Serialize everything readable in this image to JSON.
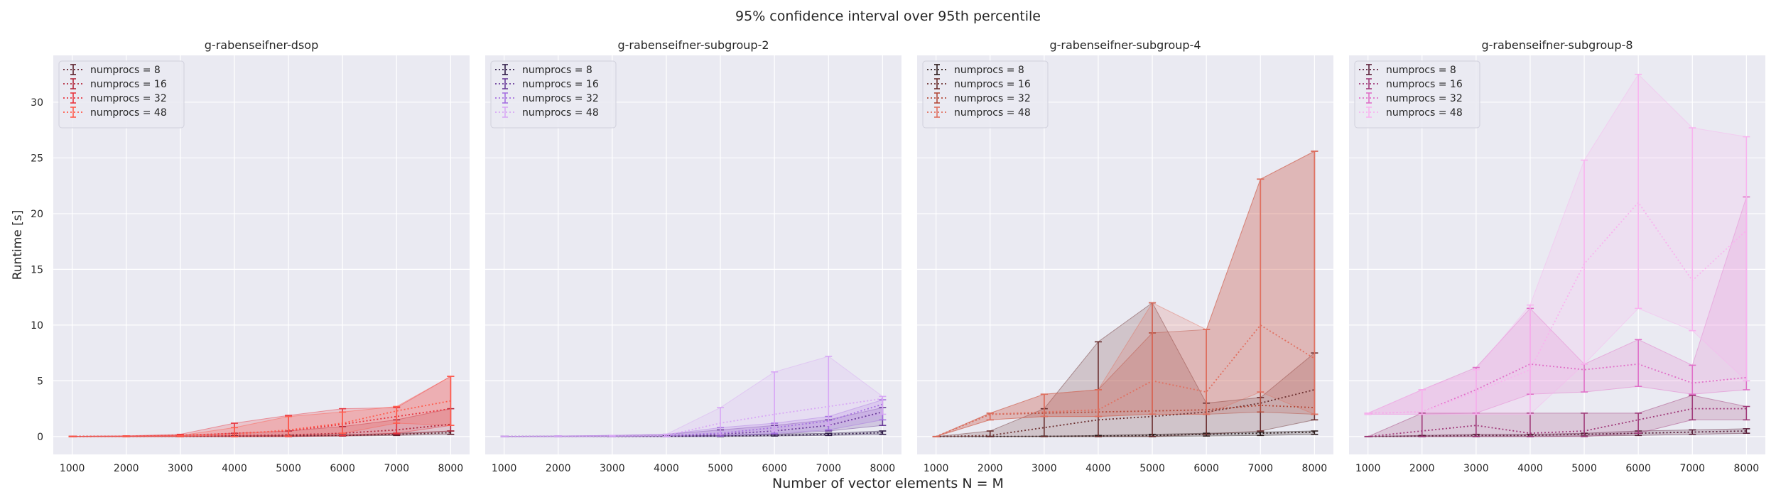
{
  "figure": {
    "suptitle": "95% confidence interval over 95th percentile",
    "xlabel": "Number of vector elements N = M",
    "ylabel": "Runtime [s]"
  },
  "chart_data": [
    {
      "type": "line",
      "title": "g-rabenseifner-dsop",
      "x": [
        1000,
        2000,
        3000,
        4000,
        5000,
        6000,
        7000,
        8000
      ],
      "xticks": [
        1000,
        2000,
        3000,
        4000,
        5000,
        6000,
        7000,
        8000
      ],
      "yticks": [
        0,
        5,
        10,
        15,
        20,
        25,
        30
      ],
      "xlim": [
        650,
        8350
      ],
      "ylim": [
        -1.6,
        34.2
      ],
      "grid": true,
      "legend_loc": "upper left",
      "series": [
        {
          "name": "numprocs = 8",
          "color": "#5c1f2b",
          "y": [
            0.005,
            0.01,
            0.02,
            0.03,
            0.06,
            0.1,
            0.2,
            0.35
          ],
          "lo": [
            0,
            0,
            0,
            0,
            0.02,
            0.05,
            0.1,
            0.2
          ],
          "hi": [
            0.01,
            0.02,
            0.04,
            0.06,
            0.1,
            0.15,
            0.3,
            0.5
          ]
        },
        {
          "name": "numprocs = 16",
          "color": "#b2273b",
          "y": [
            0.01,
            0.02,
            0.05,
            0.08,
            0.15,
            0.3,
            0.6,
            1.1
          ],
          "lo": [
            0,
            0,
            0,
            0,
            0,
            0.05,
            0.2,
            0.5
          ],
          "hi": [
            0.02,
            0.05,
            0.1,
            0.3,
            0.5,
            0.9,
            1.5,
            2.5
          ]
        },
        {
          "name": "numprocs = 32",
          "color": "#e8343e",
          "y": [
            0.01,
            0.03,
            0.1,
            0.3,
            0.5,
            1.1,
            1.8,
            2.5
          ],
          "lo": [
            0,
            0,
            0,
            0,
            0,
            0.1,
            0.3,
            1.0
          ],
          "hi": [
            0.02,
            0.06,
            0.2,
            1.2,
            1.9,
            2.5,
            2.6,
            5.4
          ]
        },
        {
          "name": "numprocs = 48",
          "color": "#ff5c4d",
          "y": [
            0.01,
            0.02,
            0.05,
            0.2,
            0.6,
            1.2,
            2.3,
            3.2
          ],
          "lo": [
            0,
            0,
            0,
            0,
            0.05,
            0.3,
            1.2,
            1.0
          ],
          "hi": [
            0.02,
            0.05,
            0.1,
            0.8,
            1.8,
            2.2,
            2.7,
            5.4
          ]
        }
      ]
    },
    {
      "type": "line",
      "title": "g-rabenseifner-subgroup-2",
      "x": [
        1000,
        2000,
        3000,
        4000,
        5000,
        6000,
        7000,
        8000
      ],
      "xticks": [
        1000,
        2000,
        3000,
        4000,
        5000,
        6000,
        7000,
        8000
      ],
      "yticks": [
        0,
        5,
        10,
        15,
        20,
        25,
        30
      ],
      "xlim": [
        650,
        8350
      ],
      "ylim": [
        -1.6,
        34.2
      ],
      "grid": true,
      "legend_loc": "upper left",
      "series": [
        {
          "name": "numprocs = 8",
          "color": "#2e1a47",
          "y": [
            0.005,
            0.01,
            0.02,
            0.03,
            0.05,
            0.1,
            0.2,
            0.35
          ],
          "lo": [
            0,
            0,
            0,
            0,
            0,
            0.05,
            0.1,
            0.2
          ],
          "hi": [
            0.01,
            0.02,
            0.04,
            0.06,
            0.1,
            0.2,
            0.3,
            0.5
          ]
        },
        {
          "name": "numprocs = 16",
          "color": "#6a3d9a",
          "y": [
            0.01,
            0.02,
            0.05,
            0.1,
            0.2,
            0.5,
            1.0,
            2.2
          ],
          "lo": [
            0,
            0,
            0,
            0,
            0.05,
            0.2,
            0.5,
            1.0
          ],
          "hi": [
            0.02,
            0.05,
            0.1,
            0.2,
            0.6,
            1.0,
            1.5,
            2.6
          ]
        },
        {
          "name": "numprocs = 32",
          "color": "#a570e0",
          "y": [
            0.01,
            0.02,
            0.05,
            0.1,
            0.3,
            0.8,
            1.4,
            2.9
          ],
          "lo": [
            0,
            0,
            0,
            0,
            0.05,
            0.3,
            0.6,
            1.5
          ],
          "hi": [
            0.02,
            0.05,
            0.1,
            0.2,
            0.8,
            1.2,
            1.8,
            3.3
          ]
        },
        {
          "name": "numprocs = 48",
          "color": "#d8a8f5",
          "y": [
            0.01,
            0.02,
            0.05,
            0.1,
            1.2,
            2.0,
            2.7,
            3.4
          ],
          "lo": [
            0,
            0,
            0,
            0,
            0.2,
            0.5,
            1.0,
            2.0
          ],
          "hi": [
            0.02,
            0.05,
            0.1,
            0.2,
            2.6,
            5.8,
            7.2,
            3.6
          ]
        }
      ]
    },
    {
      "type": "line",
      "title": "g-rabenseifner-subgroup-4",
      "x": [
        1000,
        2000,
        3000,
        4000,
        5000,
        6000,
        7000,
        8000
      ],
      "xticks": [
        1000,
        2000,
        3000,
        4000,
        5000,
        6000,
        7000,
        8000
      ],
      "yticks": [
        0,
        5,
        10,
        15,
        20,
        25,
        30
      ],
      "xlim": [
        650,
        8350
      ],
      "ylim": [
        -1.6,
        34.2
      ],
      "grid": true,
      "legend_loc": "upper left",
      "series": [
        {
          "name": "numprocs = 8",
          "color": "#2b1a1a",
          "y": [
            0.005,
            0.01,
            0.02,
            0.05,
            0.1,
            0.2,
            0.3,
            0.4
          ],
          "lo": [
            0,
            0,
            0,
            0,
            0,
            0.05,
            0.1,
            0.2
          ],
          "hi": [
            0.01,
            0.02,
            0.04,
            0.1,
            0.2,
            0.3,
            0.4,
            0.5
          ]
        },
        {
          "name": "numprocs = 16",
          "color": "#6b2f2f",
          "y": [
            0,
            0.1,
            0.8,
            1.5,
            1.8,
            2.2,
            3.0,
            4.2
          ],
          "lo": [
            0,
            0,
            0,
            0,
            0,
            0.2,
            0.5,
            1.5
          ],
          "hi": [
            0,
            0.5,
            2.5,
            8.5,
            12.0,
            3.0,
            3.5,
            7.5
          ]
        },
        {
          "name": "numprocs = 32",
          "color": "#b34a3a",
          "y": [
            0,
            2.0,
            2.1,
            2.2,
            2.3,
            2.4,
            2.8,
            2.6
          ],
          "lo": [
            0,
            1.5,
            1.8,
            1.8,
            2.0,
            2.0,
            2.2,
            2.0
          ],
          "hi": [
            0,
            2.1,
            3.8,
            4.2,
            9.3,
            9.6,
            23.1,
            25.6
          ]
        },
        {
          "name": "numprocs = 48",
          "color": "#e07060",
          "y": [
            0,
            2.0,
            2.2,
            2.4,
            5.0,
            4.0,
            10.0,
            7.0
          ],
          "lo": [
            0,
            1.5,
            1.8,
            1.8,
            2.0,
            2.0,
            4.0,
            2.0
          ],
          "hi": [
            0,
            2.1,
            3.8,
            4.2,
            12.0,
            9.6,
            23.1,
            25.6
          ]
        }
      ]
    },
    {
      "type": "line",
      "title": "g-rabenseifner-subgroup-8",
      "x": [
        1000,
        2000,
        3000,
        4000,
        5000,
        6000,
        7000,
        8000
      ],
      "xticks": [
        1000,
        2000,
        3000,
        4000,
        5000,
        6000,
        7000,
        8000
      ],
      "yticks": [
        0,
        5,
        10,
        15,
        20,
        25,
        30
      ],
      "xlim": [
        650,
        8350
      ],
      "ylim": [
        -1.6,
        34.2
      ],
      "grid": true,
      "legend_loc": "upper left",
      "series": [
        {
          "name": "numprocs = 8",
          "color": "#5a1f3a",
          "y": [
            0.005,
            0.05,
            0.1,
            0.1,
            0.2,
            0.3,
            0.4,
            0.5
          ],
          "lo": [
            0,
            0,
            0,
            0,
            0.05,
            0.1,
            0.2,
            0.3
          ],
          "hi": [
            0.01,
            0.1,
            0.2,
            0.2,
            0.3,
            0.5,
            0.6,
            0.7
          ]
        },
        {
          "name": "numprocs = 16",
          "color": "#a03a7a",
          "y": [
            0,
            0.5,
            1.0,
            0.3,
            0.5,
            1.5,
            2.5,
            2.5
          ],
          "lo": [
            0,
            0,
            0,
            0,
            0,
            0.3,
            1.5,
            1.5
          ],
          "hi": [
            0,
            2.1,
            2.1,
            2.1,
            2.1,
            2.1,
            3.7,
            2.7
          ]
        },
        {
          "name": "numprocs = 32",
          "color": "#e070c8",
          "y": [
            2.1,
            2.2,
            4.2,
            6.5,
            6.0,
            6.5,
            4.8,
            5.3
          ],
          "lo": [
            2.0,
            2.0,
            2.1,
            3.8,
            4.0,
            4.5,
            3.8,
            4.2
          ],
          "hi": [
            2.1,
            4.2,
            6.2,
            11.5,
            6.5,
            8.7,
            6.4,
            21.5
          ]
        },
        {
          "name": "numprocs = 48",
          "color": "#f8b4ef",
          "y": [
            2.1,
            2.2,
            4.0,
            6.0,
            15.5,
            21.0,
            14.0,
            18.5
          ],
          "lo": [
            2.0,
            2.0,
            2.0,
            2.0,
            6.5,
            11.5,
            9.5,
            5.0
          ],
          "hi": [
            2.1,
            4.2,
            6.0,
            11.8,
            24.8,
            32.5,
            27.7,
            26.9
          ]
        }
      ]
    }
  ]
}
